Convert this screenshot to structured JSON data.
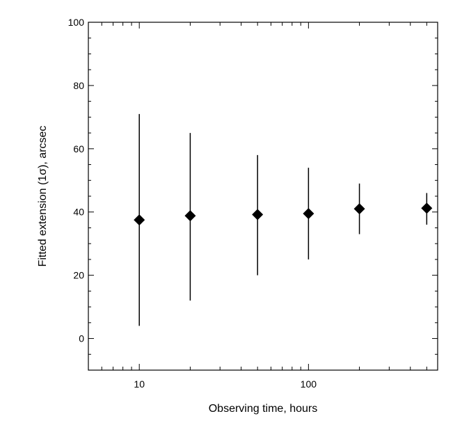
{
  "chart_data": {
    "type": "scatter",
    "xlabel": "Observing time, hours",
    "ylabel": "Fitted extension (1σ), arcsec",
    "x_scale": "log",
    "xlim": [
      5,
      580
    ],
    "ylim": [
      -10,
      100
    ],
    "x_ticks": [
      10,
      100
    ],
    "x_tick_labels": [
      "10",
      "100"
    ],
    "y_ticks": [
      0,
      20,
      40,
      60,
      80,
      100
    ],
    "y_tick_labels": [
      "0",
      "20",
      "40",
      "60",
      "80",
      "100"
    ],
    "grid": false,
    "marker": "diamond",
    "color": "#000000",
    "series": [
      {
        "points": [
          {
            "x": 10,
            "y": 37.5,
            "y_low": 4,
            "y_high": 71
          },
          {
            "x": 20,
            "y": 38.8,
            "y_low": 12,
            "y_high": 65
          },
          {
            "x": 50,
            "y": 39.2,
            "y_low": 20,
            "y_high": 58
          },
          {
            "x": 100,
            "y": 39.5,
            "y_low": 25,
            "y_high": 54
          },
          {
            "x": 200,
            "y": 41,
            "y_low": 33,
            "y_high": 49
          },
          {
            "x": 500,
            "y": 41.2,
            "y_low": 36,
            "y_high": 46
          }
        ]
      }
    ]
  }
}
